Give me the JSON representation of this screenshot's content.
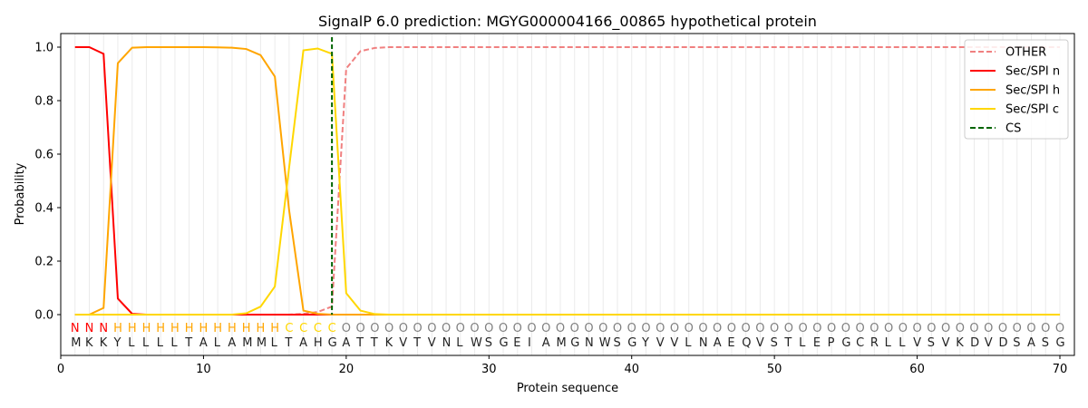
{
  "chart_data": {
    "type": "line",
    "title": "SignalP 6.0 prediction: MGYG000004166_00865 hypothetical protein",
    "xlabel": "Protein sequence",
    "ylabel": "Probability",
    "xlim": [
      0,
      71
    ],
    "ylim": [
      -0.15,
      1.05
    ],
    "xticks": [
      0,
      10,
      20,
      30,
      40,
      50,
      60,
      70
    ],
    "yticks": [
      0.0,
      0.2,
      0.4,
      0.6,
      0.8,
      1.0
    ],
    "grid": "vertical lines at each residue",
    "legend_position": "top-right",
    "sequence": "MKKYLLLLTALAMMLTAHGATTKVTVNLWSGEIAMGNWSGYVVLNAEQVSTLEPGCRLLVSVKDVDSASG",
    "labels": "NNNHHHHHHHHHHHHCCCCOOOOOOOOOOOOOOOOOOOOOOOOOOOOOOOOOOOOOOOOOOOOOOOOOOO",
    "label_colors": {
      "N": "#ff0000",
      "H": "#ffa500",
      "C": "#ffd700",
      "O": "#808080"
    },
    "cs_position": 19,
    "series": [
      {
        "name": "OTHER",
        "color": "#f08080",
        "dash": true,
        "values": [
          0,
          0,
          0,
          0,
          0,
          0,
          0,
          0,
          0,
          0,
          0,
          0,
          0,
          0,
          0,
          0,
          0.003,
          0.01,
          0.03,
          0.92,
          0.985,
          0.997,
          1,
          1,
          1,
          1,
          1,
          1,
          1,
          1,
          1,
          1,
          1,
          1,
          1,
          1,
          1,
          1,
          1,
          1,
          1,
          1,
          1,
          1,
          1,
          1,
          1,
          1,
          1,
          1,
          1,
          1,
          1,
          1,
          1,
          1,
          1,
          1,
          1,
          1,
          1,
          1,
          1,
          1,
          1,
          1,
          1,
          1,
          1,
          1
        ]
      },
      {
        "name": "Sec/SPI n",
        "color": "#ff0000",
        "values": [
          1,
          1,
          0.975,
          0.06,
          0.003,
          0,
          0,
          0,
          0,
          0,
          0,
          0,
          0,
          0,
          0,
          0,
          0,
          0,
          0,
          0,
          0,
          0,
          0,
          0,
          0,
          0,
          0,
          0,
          0,
          0,
          0,
          0,
          0,
          0,
          0,
          0,
          0,
          0,
          0,
          0,
          0,
          0,
          0,
          0,
          0,
          0,
          0,
          0,
          0,
          0,
          0,
          0,
          0,
          0,
          0,
          0,
          0,
          0,
          0,
          0,
          0,
          0,
          0,
          0,
          0,
          0,
          0,
          0,
          0,
          0
        ]
      },
      {
        "name": "Sec/SPI h",
        "color": "#ffa500",
        "values": [
          0,
          0,
          0.025,
          0.94,
          0.998,
          1,
          1,
          1,
          1,
          1,
          0.999,
          0.998,
          0.993,
          0.97,
          0.89,
          0.39,
          0.015,
          0.003,
          0,
          0,
          0,
          0,
          0,
          0,
          0,
          0,
          0,
          0,
          0,
          0,
          0,
          0,
          0,
          0,
          0,
          0,
          0,
          0,
          0,
          0,
          0,
          0,
          0,
          0,
          0,
          0,
          0,
          0,
          0,
          0,
          0,
          0,
          0,
          0,
          0,
          0,
          0,
          0,
          0,
          0,
          0,
          0,
          0,
          0,
          0,
          0,
          0,
          0,
          0,
          0
        ]
      },
      {
        "name": "Sec/SPI c",
        "color": "#ffd700",
        "values": [
          0,
          0,
          0,
          0,
          0,
          0,
          0,
          0,
          0,
          0,
          0,
          0,
          0.005,
          0.03,
          0.105,
          0.55,
          0.988,
          0.995,
          0.975,
          0.08,
          0.015,
          0.002,
          0,
          0,
          0,
          0,
          0,
          0,
          0,
          0,
          0,
          0,
          0,
          0,
          0,
          0,
          0,
          0,
          0,
          0,
          0,
          0,
          0,
          0,
          0,
          0,
          0,
          0,
          0,
          0,
          0,
          0,
          0,
          0,
          0,
          0,
          0,
          0,
          0,
          0,
          0,
          0,
          0,
          0,
          0,
          0,
          0,
          0,
          0,
          0
        ]
      },
      {
        "name": "CS",
        "color": "#006400",
        "dash": true,
        "values": []
      }
    ]
  }
}
